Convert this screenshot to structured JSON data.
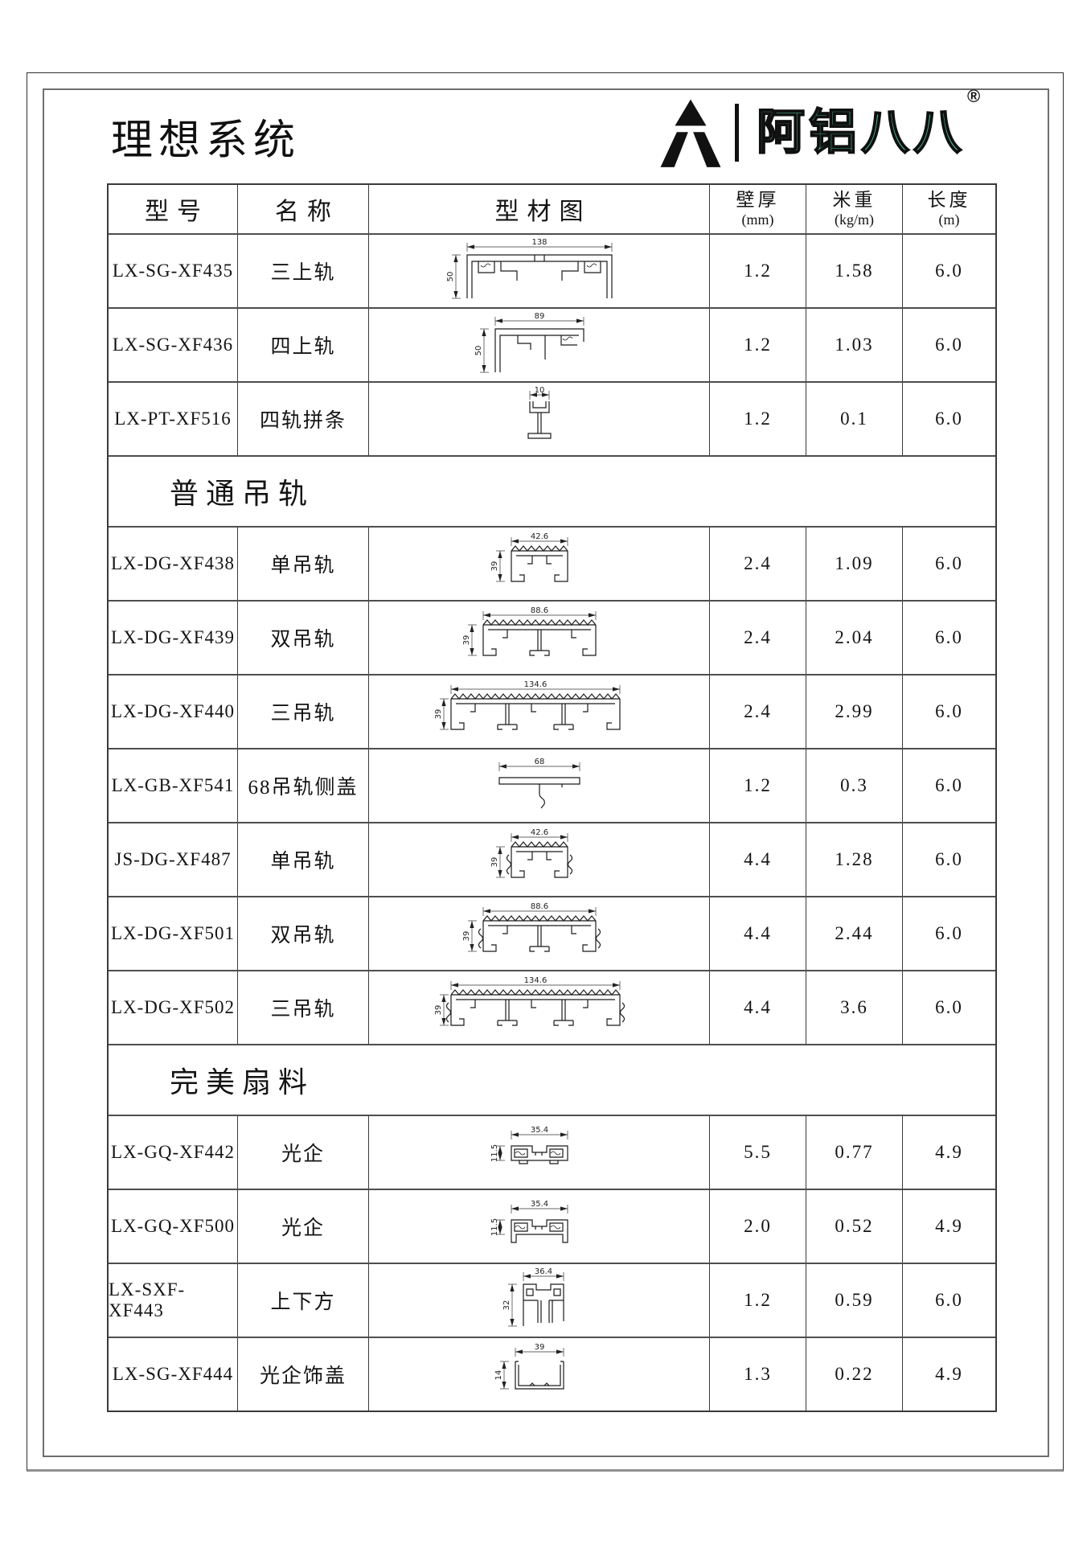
{
  "page": {
    "title": "理想系统"
  },
  "logo": {
    "brand": "阿铝八八",
    "reg": "®",
    "accent": "#4FCBA5"
  },
  "table": {
    "headers": [
      {
        "label": "型号",
        "unit": ""
      },
      {
        "label": "名称",
        "unit": ""
      },
      {
        "label": "型材图",
        "unit": ""
      },
      {
        "label": "壁厚",
        "unit": "(mm)"
      },
      {
        "label": "米重",
        "unit": "(kg/m)"
      },
      {
        "label": "长度",
        "unit": "(m)"
      }
    ],
    "rows": [
      {
        "type": "item",
        "model": "LX-SG-XF435",
        "name": "三上轨",
        "shape": "upper3",
        "dim_w": "138",
        "dim_h": "50",
        "wall": "1.2",
        "weight": "1.58",
        "length": "6.0"
      },
      {
        "type": "item",
        "model": "LX-SG-XF436",
        "name": "四上轨",
        "shape": "upper4",
        "dim_w": "89",
        "dim_h": "50",
        "wall": "1.2",
        "weight": "1.03",
        "length": "6.0"
      },
      {
        "type": "item",
        "model": "LX-PT-XF516",
        "name": "四轨拼条",
        "shape": "ibeam",
        "dim_w": "10",
        "wall": "1.2",
        "weight": "0.1",
        "length": "6.0"
      },
      {
        "type": "section",
        "label": "普通吊轨"
      },
      {
        "type": "item",
        "model": "LX-DG-XF438",
        "name": "单吊轨",
        "shape": "track1",
        "dim_w": "42.6",
        "dim_h": "39",
        "wall": "2.4",
        "weight": "1.09",
        "length": "6.0"
      },
      {
        "type": "item",
        "model": "LX-DG-XF439",
        "name": "双吊轨",
        "shape": "track2",
        "dim_w": "88.6",
        "dim_h": "39",
        "wall": "2.4",
        "weight": "2.04",
        "length": "6.0"
      },
      {
        "type": "item",
        "model": "LX-DG-XF440",
        "name": "三吊轨",
        "shape": "track3",
        "dim_w": "134.6",
        "dim_h": "39",
        "wall": "2.4",
        "weight": "2.99",
        "length": "6.0"
      },
      {
        "type": "item",
        "model": "LX-GB-XF541",
        "name": "68吊轨侧盖",
        "shape": "sidecover",
        "dim_w": "68",
        "wall": "1.2",
        "weight": "0.3",
        "length": "6.0"
      },
      {
        "type": "item",
        "model": "JS-DG-XF487",
        "name": "单吊轨",
        "shape": "track1b",
        "dim_w": "42.6",
        "dim_h": "39",
        "wall": "4.4",
        "weight": "1.28",
        "length": "6.0"
      },
      {
        "type": "item",
        "model": "LX-DG-XF501",
        "name": "双吊轨",
        "shape": "track2b",
        "dim_w": "88.6",
        "dim_h": "39",
        "wall": "4.4",
        "weight": "2.44",
        "length": "6.0"
      },
      {
        "type": "item",
        "model": "LX-DG-XF502",
        "name": "三吊轨",
        "shape": "track3b",
        "dim_w": "134.6",
        "dim_h": "39",
        "wall": "4.4",
        "weight": "3.6",
        "length": "6.0"
      },
      {
        "type": "section",
        "label": "完美扇料"
      },
      {
        "type": "item",
        "model": "LX-GQ-XF442",
        "name": "光企",
        "shape": "gq1",
        "dim_w": "35.4",
        "dim_h": "11.5",
        "wall": "5.5",
        "weight": "0.77",
        "length": "4.9"
      },
      {
        "type": "item",
        "model": "LX-GQ-XF500",
        "name": "光企",
        "shape": "gq2",
        "dim_w": "35.4",
        "dim_h": "11.5",
        "wall": "2.0",
        "weight": "0.52",
        "length": "4.9"
      },
      {
        "type": "item",
        "model": "LX-SXF-XF443",
        "name": "上下方",
        "shape": "sxf",
        "dim_w": "36.4",
        "dim_h": "32",
        "wall": "1.2",
        "weight": "0.59",
        "length": "6.0"
      },
      {
        "type": "item",
        "model": "LX-SG-XF444",
        "name": "光企饰盖",
        "shape": "cover",
        "dim_w": "39",
        "dim_h": "14",
        "wall": "1.3",
        "weight": "0.22",
        "length": "4.9"
      }
    ]
  }
}
